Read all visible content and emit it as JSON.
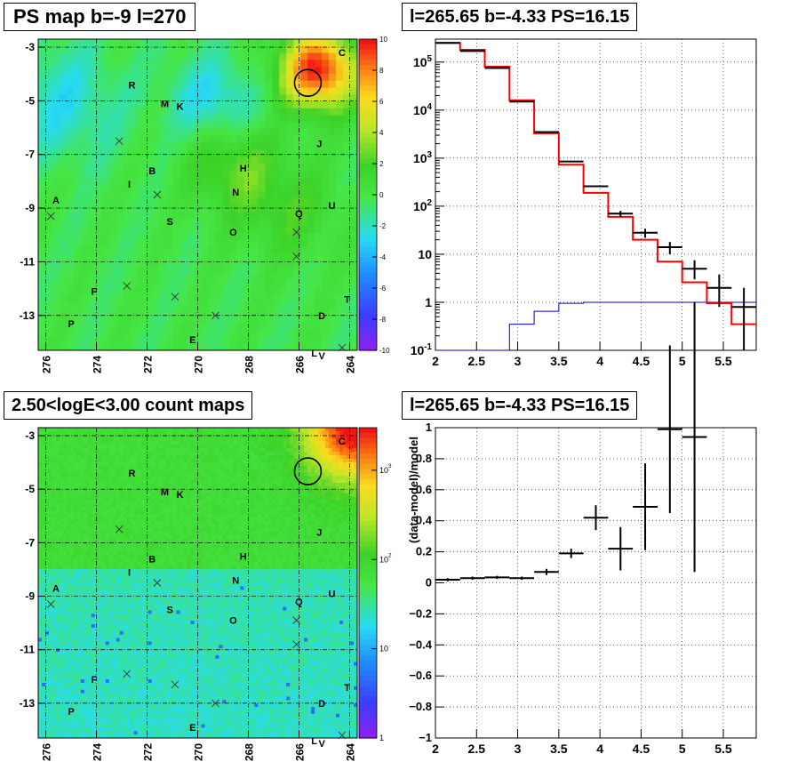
{
  "panels": {
    "top_left_title": "PS map b=-9 l=270",
    "top_right_title": "l=265.65 b=-4.33 PS=16.15",
    "bottom_left_title": "2.50<logE<3.00 count maps",
    "bottom_right_title": "l=265.65 b=-4.33 PS=16.15"
  },
  "colors": {
    "data": "#000000",
    "model": "#ff0000",
    "background_model": "#0000cc"
  },
  "chart_data": [
    {
      "type": "heatmap",
      "title": "PS map b=-9 l=270",
      "x_ticks": [
        "276",
        "274",
        "272",
        "270",
        "268",
        "266",
        "264"
      ],
      "y_ticks": [
        "-3",
        "-5",
        "-7",
        "-9",
        "-11",
        "-13"
      ],
      "xlim": [
        276.3,
        263.7
      ],
      "ylim": [
        -14.3,
        -2.7
      ],
      "colorbar_ticks": [
        "10",
        "8",
        "6",
        "4",
        "2",
        "0",
        "-2",
        "-4",
        "-6",
        "-8",
        "-10"
      ],
      "colorbar_range": [
        -10,
        10
      ],
      "grid": true,
      "source_labels": [
        {
          "text": "C",
          "l": 264.3,
          "b": -3.2
        },
        {
          "text": "R",
          "l": 272.6,
          "b": -4.4
        },
        {
          "text": "M",
          "l": 271.3,
          "b": -5.1
        },
        {
          "text": "K",
          "l": 270.7,
          "b": -5.2
        },
        {
          "text": "J",
          "l": 265.2,
          "b": -6.6
        },
        {
          "text": "B",
          "l": 271.8,
          "b": -7.6
        },
        {
          "text": "H",
          "l": 268.2,
          "b": -7.5
        },
        {
          "text": "I",
          "l": 272.7,
          "b": -8.1
        },
        {
          "text": "N",
          "l": 268.5,
          "b": -8.4
        },
        {
          "text": "A",
          "l": 275.6,
          "b": -8.7
        },
        {
          "text": "U",
          "l": 264.7,
          "b": -8.9
        },
        {
          "text": "Q",
          "l": 266.0,
          "b": -9.2
        },
        {
          "text": "S",
          "l": 271.1,
          "b": -9.5
        },
        {
          "text": "O",
          "l": 268.6,
          "b": -9.9
        },
        {
          "text": "F",
          "l": 274.1,
          "b": -12.1
        },
        {
          "text": "T",
          "l": 264.1,
          "b": -12.4
        },
        {
          "text": "D",
          "l": 265.1,
          "b": -13.0
        },
        {
          "text": "P",
          "l": 275.0,
          "b": -13.3
        },
        {
          "text": "E",
          "l": 270.2,
          "b": -13.9
        },
        {
          "text": "L",
          "l": 265.4,
          "b": -14.4
        },
        {
          "text": "V",
          "l": 265.1,
          "b": -14.5
        }
      ],
      "cross_markers": [
        {
          "l": 273.1,
          "b": -6.5
        },
        {
          "l": 271.6,
          "b": -8.5
        },
        {
          "l": 275.8,
          "b": -9.3
        },
        {
          "l": 266.1,
          "b": -9.9
        },
        {
          "l": 266.1,
          "b": -10.8
        },
        {
          "l": 272.8,
          "b": -11.9
        },
        {
          "l": 270.9,
          "b": -12.3
        },
        {
          "l": 269.3,
          "b": -13.0
        },
        {
          "l": 264.3,
          "b": -14.2
        }
      ],
      "ps_circle": {
        "l": 265.65,
        "b": -4.33
      }
    },
    {
      "type": "line",
      "title": "l=265.65 b=-4.33 PS=16.15",
      "x_ticks": [
        "2",
        "2.5",
        "3",
        "3.5",
        "4",
        "4.5",
        "5",
        "5.5"
      ],
      "y_ticks": [
        "10^{-1}",
        "1",
        "10",
        "10^{2}",
        "10^{3}",
        "10^{4}",
        "10^{5}"
      ],
      "xlim": [
        2.0,
        5.9
      ],
      "ylim": [
        0.1,
        300000
      ],
      "y_log": true,
      "grid": true,
      "bin_edges": [
        2.0,
        2.3,
        2.6,
        2.9,
        3.2,
        3.5,
        3.8,
        4.1,
        4.4,
        4.7,
        5.0,
        5.3,
        5.6,
        5.9
      ],
      "series": [
        {
          "role": "model",
          "values": [
            250000,
            180000,
            80000,
            16000,
            3300,
            730,
            190,
            60,
            20,
            7,
            2.6,
            0.95,
            0.35
          ]
        },
        {
          "role": "data",
          "values": [
            250000,
            170000,
            75000,
            15000,
            3500,
            850,
            260,
            70,
            28,
            14,
            5,
            2,
            0.8
          ],
          "err_low": [
            0,
            0,
            0,
            0,
            0,
            0,
            0,
            10,
            6,
            4,
            2,
            1.2,
            0.7
          ],
          "err_high": [
            0,
            0,
            0,
            0,
            0,
            0,
            0,
            10,
            6,
            4,
            2.5,
            1.8,
            1.2
          ]
        },
        {
          "role": "background",
          "values": [
            0.1,
            0.1,
            0.1,
            0.35,
            0.65,
            0.95,
            1.0,
            1.0,
            1.0,
            1.0,
            1.0,
            1.0,
            1.0
          ]
        }
      ]
    },
    {
      "type": "heatmap",
      "title": "2.50<logE<3.00 count maps",
      "x_ticks": [
        "276",
        "274",
        "272",
        "270",
        "268",
        "266",
        "264"
      ],
      "y_ticks": [
        "-3",
        "-5",
        "-7",
        "-9",
        "-11",
        "-13"
      ],
      "xlim": [
        276.3,
        263.7
      ],
      "ylim": [
        -14.3,
        -2.7
      ],
      "colorbar_ticks": [
        "10^{3}",
        "10^{2}",
        "10",
        "1"
      ],
      "colorbar_log": true,
      "colorbar_range": [
        1,
        3000
      ],
      "grid": true,
      "ps_circle": {
        "l": 265.65,
        "b": -4.33
      }
    },
    {
      "type": "scatter",
      "title": "l=265.65 b=-4.33 PS=16.15",
      "ylabel": "(data-model)/model",
      "x_ticks": [
        "2",
        "2.5",
        "3",
        "3.5",
        "4",
        "4.5",
        "5",
        "5.5"
      ],
      "y_ticks": [
        "1",
        "0.8",
        "0.6",
        "0.4",
        "0.2",
        "0",
        "-0.2",
        "-0.4",
        "-0.6",
        "-0.8",
        "-1"
      ],
      "xlim": [
        2.0,
        5.9
      ],
      "ylim": [
        -1,
        1
      ],
      "grid": true,
      "points": [
        {
          "x": 2.15,
          "y": 0.02,
          "xerr": 0.15,
          "yerr": 0.01
        },
        {
          "x": 2.45,
          "y": 0.03,
          "xerr": 0.15,
          "yerr": 0.01
        },
        {
          "x": 2.75,
          "y": 0.035,
          "xerr": 0.15,
          "yerr": 0.01
        },
        {
          "x": 3.05,
          "y": 0.03,
          "xerr": 0.15,
          "yerr": 0.01
        },
        {
          "x": 3.35,
          "y": 0.07,
          "xerr": 0.15,
          "yerr": 0.02
        },
        {
          "x": 3.65,
          "y": 0.19,
          "xerr": 0.15,
          "yerr": 0.03
        },
        {
          "x": 3.95,
          "y": 0.42,
          "xerr": 0.15,
          "yerr": 0.08
        },
        {
          "x": 4.25,
          "y": 0.22,
          "xerr": 0.15,
          "yerr": 0.14
        },
        {
          "x": 4.55,
          "y": 0.49,
          "xerr": 0.15,
          "yerr": 0.28
        },
        {
          "x": 4.85,
          "y": 0.99,
          "xerr": 0.15,
          "yerr": 0.54
        },
        {
          "x": 5.15,
          "y": 0.94,
          "xerr": 0.15,
          "yerr": 0.87
        }
      ]
    }
  ]
}
